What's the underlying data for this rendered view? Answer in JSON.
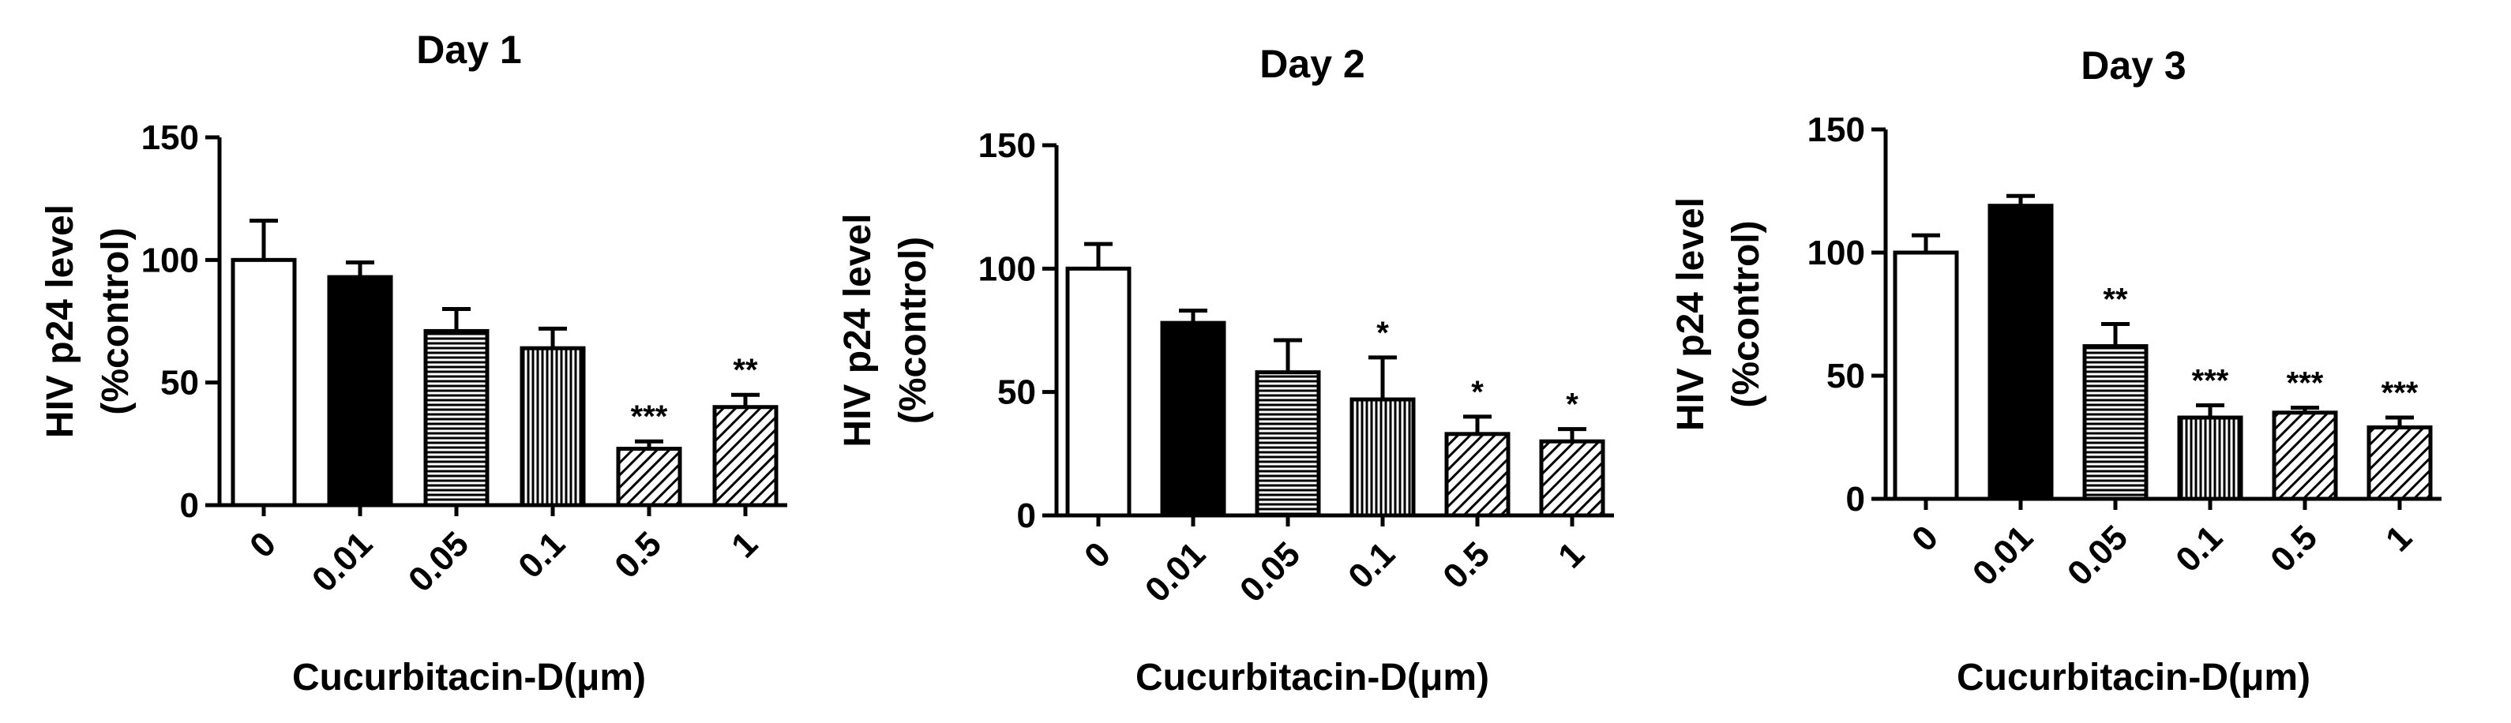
{
  "chart_data": [
    {
      "type": "bar",
      "title": "Day 1",
      "ylabel_line1": "HIV p24 level",
      "ylabel_line2": "(%control)",
      "xlabel": "Cucurbitacin-D(μm)",
      "categories": [
        "0",
        "0.01",
        "0.05",
        "0.1",
        "0.5",
        "1"
      ],
      "values": [
        100,
        93,
        71,
        64,
        23,
        40
      ],
      "errors": [
        16,
        6,
        9,
        8,
        3,
        5
      ],
      "significance": [
        "",
        "",
        "",
        "",
        "***",
        "**"
      ],
      "ylim": [
        0,
        150
      ],
      "yticks": [
        0,
        50,
        100,
        150
      ],
      "fills": [
        "open",
        "solid",
        "horizontal",
        "vertical",
        "diagonal",
        "diagonal"
      ]
    },
    {
      "type": "bar",
      "title": "Day 2",
      "ylabel_line1": "HIV p24 level",
      "ylabel_line2": "(%control)",
      "xlabel": "Cucurbitacin-D(μm)",
      "categories": [
        "0",
        "0.01",
        "0.05",
        "0.1",
        "0.5",
        "1"
      ],
      "values": [
        100,
        78,
        58,
        47,
        33,
        30
      ],
      "errors": [
        10,
        5,
        13,
        17,
        7,
        5
      ],
      "significance": [
        "",
        "",
        "",
        "*",
        "*",
        "*"
      ],
      "ylim": [
        0,
        150
      ],
      "yticks": [
        0,
        50,
        100,
        150
      ],
      "fills": [
        "open",
        "solid",
        "horizontal",
        "vertical",
        "diagonal",
        "diagonal"
      ]
    },
    {
      "type": "bar",
      "title": "Day 3",
      "ylabel_line1": "HIV p24 level",
      "ylabel_line2": "(%control)",
      "xlabel": "Cucurbitacin-D(μm)",
      "categories": [
        "0",
        "0.01",
        "0.05",
        "0.1",
        "0.5",
        "1"
      ],
      "values": [
        100,
        119,
        62,
        33,
        35,
        29
      ],
      "errors": [
        7,
        4,
        9,
        5,
        2,
        4
      ],
      "significance": [
        "",
        "",
        "**",
        "***",
        "***",
        "***"
      ],
      "ylim": [
        0,
        150
      ],
      "yticks": [
        0,
        50,
        100,
        150
      ],
      "fills": [
        "open",
        "solid",
        "horizontal",
        "vertical",
        "diagonal",
        "diagonal"
      ]
    }
  ]
}
